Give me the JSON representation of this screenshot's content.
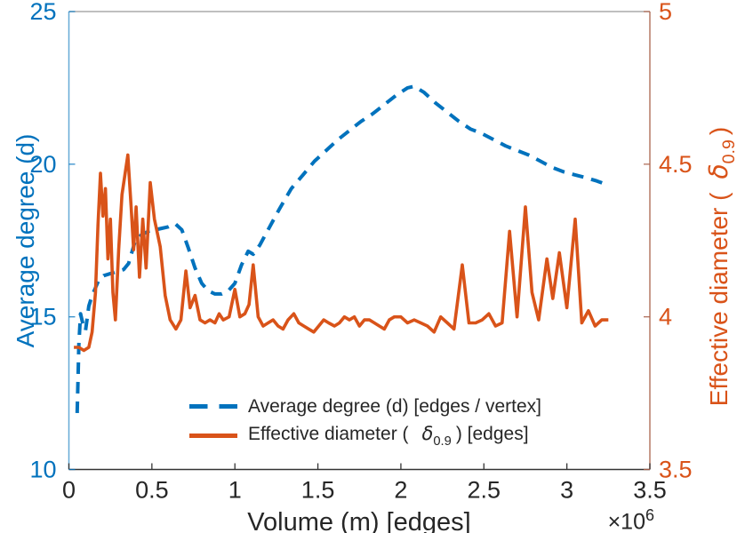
{
  "chart_data": {
    "type": "line",
    "title": "",
    "xlabel": "Volume (m) [edges]",
    "x_exponent": {
      "mult": "×10",
      "exp": "6"
    },
    "xlim": [
      0,
      3.5
    ],
    "x_ticks": {
      "values": [
        0,
        0.5,
        1,
        1.5,
        2,
        2.5,
        3,
        3.5
      ],
      "labels": [
        "0",
        "0.5",
        "1",
        "1.5",
        "2",
        "2.5",
        "3",
        "3.5"
      ]
    },
    "grid": false,
    "left_axis": {
      "label": "Average degree (d)",
      "lim": [
        10,
        25
      ],
      "tick_values": [
        10,
        15,
        20,
        25
      ],
      "tick_labels": [
        "10",
        "15",
        "20",
        "25"
      ],
      "color": "#0072BD"
    },
    "right_axis": {
      "label_pre": "Effective diameter (",
      "label_delta": "δ",
      "label_sub": "0.9",
      "label_post": ")",
      "label_full": "Effective diameter ( δ_0.9 )",
      "lim": [
        3.5,
        5
      ],
      "tick_values": [
        3.5,
        4,
        4.5,
        5
      ],
      "tick_labels": [
        "3.5",
        "4",
        "4.5",
        "5"
      ],
      "color": "#D95319",
      "spine_color": "#a8614a"
    },
    "legend": {
      "position": "south-center-inside",
      "items": [
        {
          "label": "Average degree (d) [edges / vertex]",
          "color": "#0072BD",
          "line_style": "dashed"
        },
        {
          "label_pre": "Effective diameter (",
          "delta": "δ",
          "sub": "0.9",
          "label_post": ") [edges]",
          "label_full": "Effective diameter ( δ_0.9 ) [edges]",
          "color": "#D95319",
          "line_style": "solid"
        }
      ]
    },
    "series": [
      {
        "name": "Average degree (d) [edges / vertex]",
        "axis": "left",
        "line_style": "dashed",
        "color": "#0072BD",
        "points": [
          [
            0.05,
            11.85
          ],
          [
            0.055,
            13.0
          ],
          [
            0.06,
            14.1
          ],
          [
            0.07,
            15.1
          ],
          [
            0.085,
            14.75
          ],
          [
            0.1,
            14.55
          ],
          [
            0.12,
            15.35
          ],
          [
            0.14,
            15.7
          ],
          [
            0.16,
            15.95
          ],
          [
            0.18,
            16.2
          ],
          [
            0.21,
            16.35
          ],
          [
            0.24,
            16.4
          ],
          [
            0.27,
            16.45
          ],
          [
            0.3,
            16.5
          ],
          [
            0.33,
            16.55
          ],
          [
            0.36,
            16.75
          ],
          [
            0.4,
            17.5
          ],
          [
            0.44,
            17.7
          ],
          [
            0.48,
            17.8
          ],
          [
            0.52,
            17.85
          ],
          [
            0.56,
            17.9
          ],
          [
            0.6,
            17.95
          ],
          [
            0.64,
            18.05
          ],
          [
            0.68,
            17.85
          ],
          [
            0.72,
            17.25
          ],
          [
            0.76,
            16.6
          ],
          [
            0.8,
            16.1
          ],
          [
            0.84,
            15.85
          ],
          [
            0.88,
            15.75
          ],
          [
            0.92,
            15.75
          ],
          [
            0.96,
            15.85
          ],
          [
            1.0,
            16.1
          ],
          [
            1.04,
            16.7
          ],
          [
            1.08,
            17.15
          ],
          [
            1.11,
            17.05
          ],
          [
            1.15,
            17.35
          ],
          [
            1.21,
            17.95
          ],
          [
            1.27,
            18.55
          ],
          [
            1.34,
            19.2
          ],
          [
            1.41,
            19.65
          ],
          [
            1.48,
            20.1
          ],
          [
            1.55,
            20.45
          ],
          [
            1.62,
            20.8
          ],
          [
            1.69,
            21.1
          ],
          [
            1.76,
            21.4
          ],
          [
            1.83,
            21.65
          ],
          [
            1.9,
            21.95
          ],
          [
            1.97,
            22.25
          ],
          [
            2.04,
            22.5
          ],
          [
            2.08,
            22.55
          ],
          [
            2.14,
            22.35
          ],
          [
            2.21,
            22.0
          ],
          [
            2.28,
            21.7
          ],
          [
            2.35,
            21.4
          ],
          [
            2.42,
            21.15
          ],
          [
            2.49,
            21.0
          ],
          [
            2.56,
            20.8
          ],
          [
            2.63,
            20.6
          ],
          [
            2.7,
            20.45
          ],
          [
            2.77,
            20.3
          ],
          [
            2.84,
            20.1
          ],
          [
            2.91,
            19.9
          ],
          [
            2.98,
            19.75
          ],
          [
            3.05,
            19.65
          ],
          [
            3.12,
            19.55
          ],
          [
            3.18,
            19.45
          ],
          [
            3.23,
            19.35
          ]
        ]
      },
      {
        "name": "Effective diameter ( δ_0.9 ) [edges]",
        "axis": "right",
        "line_style": "solid",
        "color": "#D95319",
        "points": [
          [
            0.03,
            3.9
          ],
          [
            0.06,
            3.9
          ],
          [
            0.09,
            3.89
          ],
          [
            0.12,
            3.9
          ],
          [
            0.14,
            3.95
          ],
          [
            0.16,
            4.08
          ],
          [
            0.175,
            4.3
          ],
          [
            0.19,
            4.47
          ],
          [
            0.205,
            4.33
          ],
          [
            0.22,
            4.42
          ],
          [
            0.235,
            4.19
          ],
          [
            0.25,
            4.32
          ],
          [
            0.265,
            4.08
          ],
          [
            0.28,
            3.99
          ],
          [
            0.3,
            4.22
          ],
          [
            0.32,
            4.4
          ],
          [
            0.355,
            4.53
          ],
          [
            0.375,
            4.36
          ],
          [
            0.39,
            4.22
          ],
          [
            0.405,
            4.36
          ],
          [
            0.425,
            4.13
          ],
          [
            0.445,
            4.32
          ],
          [
            0.465,
            4.16
          ],
          [
            0.49,
            4.44
          ],
          [
            0.515,
            4.32
          ],
          [
            0.55,
            4.23
          ],
          [
            0.58,
            4.07
          ],
          [
            0.61,
            3.99
          ],
          [
            0.645,
            3.96
          ],
          [
            0.675,
            3.99
          ],
          [
            0.705,
            4.15
          ],
          [
            0.73,
            4.03
          ],
          [
            0.76,
            4.07
          ],
          [
            0.79,
            3.99
          ],
          [
            0.82,
            3.98
          ],
          [
            0.85,
            3.99
          ],
          [
            0.88,
            3.98
          ],
          [
            0.905,
            4.01
          ],
          [
            0.93,
            3.99
          ],
          [
            0.965,
            4.0
          ],
          [
            1.0,
            4.09
          ],
          [
            1.03,
            4.0
          ],
          [
            1.06,
            4.01
          ],
          [
            1.085,
            4.04
          ],
          [
            1.11,
            4.17
          ],
          [
            1.14,
            4.0
          ],
          [
            1.17,
            3.97
          ],
          [
            1.2,
            3.98
          ],
          [
            1.23,
            3.99
          ],
          [
            1.26,
            3.97
          ],
          [
            1.29,
            3.96
          ],
          [
            1.32,
            3.99
          ],
          [
            1.355,
            4.01
          ],
          [
            1.385,
            3.98
          ],
          [
            1.415,
            3.97
          ],
          [
            1.445,
            3.96
          ],
          [
            1.475,
            3.95
          ],
          [
            1.505,
            3.97
          ],
          [
            1.535,
            3.99
          ],
          [
            1.565,
            3.98
          ],
          [
            1.6,
            3.97
          ],
          [
            1.63,
            3.98
          ],
          [
            1.66,
            4.0
          ],
          [
            1.69,
            3.99
          ],
          [
            1.72,
            4.0
          ],
          [
            1.75,
            3.97
          ],
          [
            1.78,
            3.99
          ],
          [
            1.81,
            3.99
          ],
          [
            1.84,
            3.98
          ],
          [
            1.87,
            3.97
          ],
          [
            1.9,
            3.96
          ],
          [
            1.93,
            3.99
          ],
          [
            1.96,
            4.0
          ],
          [
            2.0,
            4.0
          ],
          [
            2.04,
            3.98
          ],
          [
            2.08,
            3.99
          ],
          [
            2.12,
            3.98
          ],
          [
            2.16,
            3.97
          ],
          [
            2.2,
            3.95
          ],
          [
            2.24,
            4.0
          ],
          [
            2.28,
            3.98
          ],
          [
            2.32,
            3.96
          ],
          [
            2.37,
            4.17
          ],
          [
            2.41,
            3.98
          ],
          [
            2.45,
            3.98
          ],
          [
            2.49,
            3.99
          ],
          [
            2.53,
            4.01
          ],
          [
            2.57,
            3.97
          ],
          [
            2.61,
            3.98
          ],
          [
            2.655,
            4.28
          ],
          [
            2.7,
            4.0
          ],
          [
            2.75,
            4.36
          ],
          [
            2.79,
            4.08
          ],
          [
            2.83,
            3.99
          ],
          [
            2.88,
            4.19
          ],
          [
            2.915,
            4.06
          ],
          [
            2.955,
            4.21
          ],
          [
            3.0,
            4.03
          ],
          [
            3.05,
            4.32
          ],
          [
            3.09,
            3.98
          ],
          [
            3.13,
            4.02
          ],
          [
            3.17,
            3.97
          ],
          [
            3.21,
            3.99
          ],
          [
            3.25,
            3.99
          ]
        ]
      }
    ]
  },
  "colors": {
    "axis_dark": "#262626",
    "bottom_spine": "#333333",
    "top_spine": "#999999"
  }
}
